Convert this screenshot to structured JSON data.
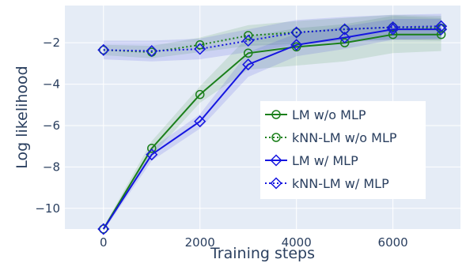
{
  "chart_data": {
    "type": "line",
    "xlabel": "Training steps",
    "ylabel": "Log likelihood",
    "xlim": [
      -800,
      7400
    ],
    "ylim": [
      -11,
      -0.2
    ],
    "xticks": [
      0,
      2000,
      4000,
      6000
    ],
    "xtick_labels": [
      "0",
      "2000",
      "4000",
      "6000"
    ],
    "yticks": [
      -10,
      -8,
      -6,
      -4,
      -2
    ],
    "ytick_labels": [
      "−10",
      "−8",
      "−6",
      "−4",
      "−2"
    ],
    "grid": true,
    "legend_position": "bottom-right",
    "background": "#e5ecf6",
    "x": [
      0,
      1000,
      2000,
      3000,
      4000,
      5000,
      6000,
      7000
    ],
    "series": [
      {
        "name": "LM w/o MLP",
        "color": "#1a7f1a",
        "dash": "solid",
        "marker": "circle",
        "values": [
          -11.0,
          -7.1,
          -4.5,
          -2.5,
          -2.2,
          -2.0,
          -1.6,
          -1.6
        ],
        "band": [
          0.1,
          0.35,
          0.4,
          0.8,
          0.9,
          0.9,
          0.9,
          0.8
        ]
      },
      {
        "name": "kNN-LM w/o MLP",
        "color": "#1a7f1a",
        "dash": "dotted",
        "marker": "circle",
        "values": [
          -2.35,
          -2.45,
          -2.1,
          -1.65,
          -1.5,
          -1.35,
          -1.25,
          -1.3
        ],
        "band": [
          0.25,
          0.3,
          0.35,
          0.5,
          0.55,
          0.55,
          0.6,
          0.6
        ]
      },
      {
        "name": "LM w/ MLP",
        "color": "#1515e0",
        "dash": "solid",
        "marker": "diamond",
        "values": [
          -11.0,
          -7.4,
          -5.8,
          -3.05,
          -2.1,
          -1.75,
          -1.35,
          -1.35
        ],
        "band": [
          0.1,
          0.3,
          0.35,
          0.6,
          0.55,
          0.55,
          0.5,
          0.5
        ]
      },
      {
        "name": "kNN-LM w/ MLP",
        "color": "#1515e0",
        "dash": "dotted",
        "marker": "diamond",
        "values": [
          -2.35,
          -2.4,
          -2.3,
          -1.9,
          -1.5,
          -1.35,
          -1.25,
          -1.2
        ],
        "band": [
          0.45,
          0.5,
          0.5,
          0.55,
          0.6,
          0.6,
          0.6,
          0.6
        ]
      }
    ]
  }
}
